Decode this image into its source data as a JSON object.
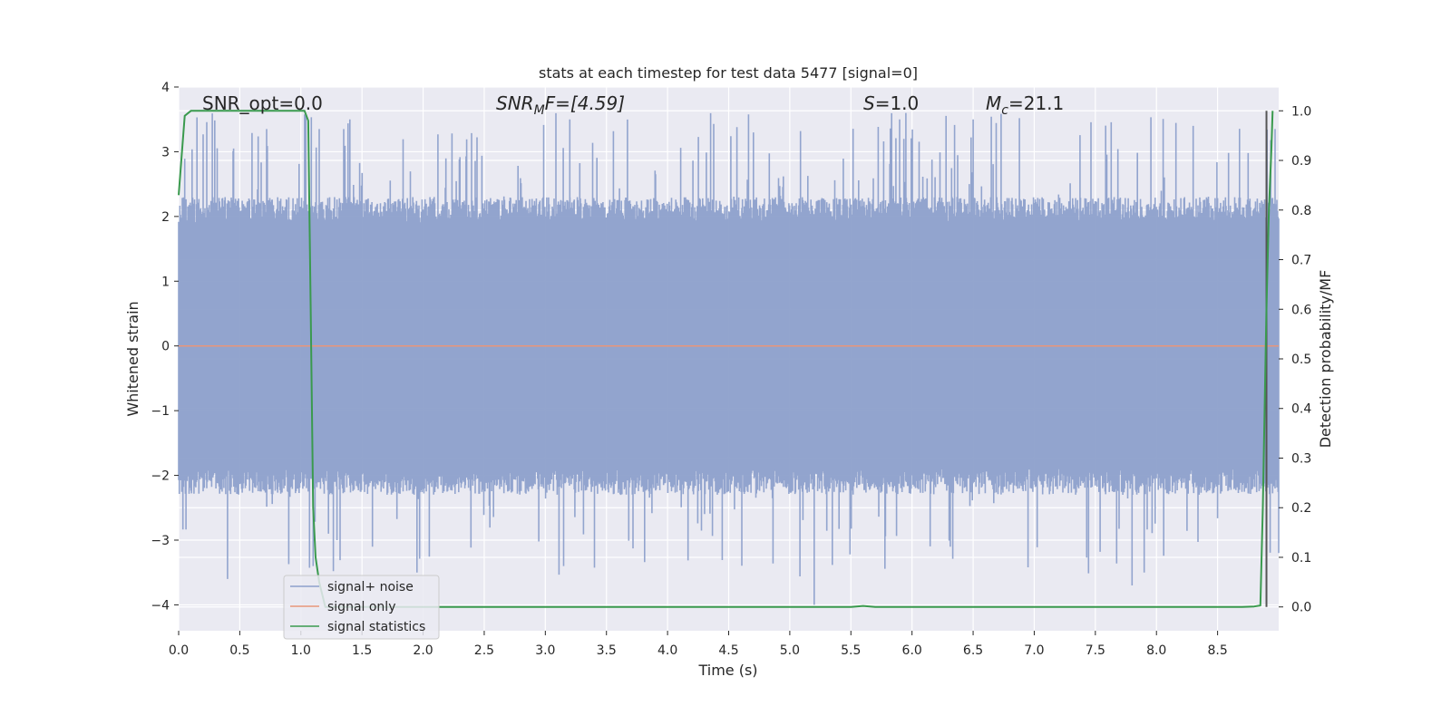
{
  "chart_data": {
    "type": "line",
    "title": "stats at each timestep for test data 5477 [signal=0]",
    "xlabel": "Time (s)",
    "ylabel": "Whitened strain",
    "y2label": "Detection probability/MF",
    "xlim": [
      0.0,
      9.0
    ],
    "ylim": [
      -4.4,
      4.0
    ],
    "y2lim": [
      -0.048,
      1.048
    ],
    "x_ticks": [
      0.0,
      0.5,
      1.0,
      1.5,
      2.0,
      2.5,
      3.0,
      3.5,
      4.0,
      4.5,
      5.0,
      5.5,
      6.0,
      6.5,
      7.0,
      7.5,
      8.0,
      8.5
    ],
    "x_tick_labels": [
      "0.0",
      "0.5",
      "1.0",
      "1.5",
      "2.0",
      "2.5",
      "3.0",
      "3.5",
      "4.0",
      "4.5",
      "5.0",
      "5.5",
      "6.0",
      "6.5",
      "7.0",
      "7.5",
      "8.0",
      "8.5"
    ],
    "y_ticks": [
      4,
      3,
      2,
      1,
      0,
      -1,
      -2,
      -3,
      -4
    ],
    "y_tick_labels": [
      "4",
      "3",
      "2",
      "1",
      "0",
      "−1",
      "−2",
      "−3",
      "−4"
    ],
    "y2_ticks": [
      1.0,
      0.9,
      0.8,
      0.7,
      0.6,
      0.5,
      0.4,
      0.3,
      0.2,
      0.1,
      0.0
    ],
    "y2_tick_labels": [
      "1.0",
      "0.9",
      "0.8",
      "0.7",
      "0.6",
      "0.5",
      "0.4",
      "0.3",
      "0.2",
      "0.1",
      "0.0"
    ],
    "grid": true,
    "legend_position": "lower-left",
    "annotations": {
      "snr_opt": "SNR_opt=0.0",
      "snr_mf_label": "SNR",
      "snr_mf_sub": "M",
      "snr_mf_rest": "F=[4.59]",
      "s_label": "S",
      "s_rest": "=1.0",
      "mc_label": "M",
      "mc_sub": "c",
      "mc_rest": "=21.1"
    },
    "series": [
      {
        "name": "signal+ noise",
        "color": "#8da0cb",
        "kind": "noise",
        "envelope": {
          "typical_upper": 2.0,
          "typical_lower": -2.0,
          "max_peak": 3.6,
          "min_peak": -4.0
        },
        "notable_peaks": [
          {
            "x": 0.45,
            "y": 3.05
          },
          {
            "x": 0.72,
            "y": 3.35
          },
          {
            "x": 1.15,
            "y": 3.35
          },
          {
            "x": 1.35,
            "y": 3.35
          },
          {
            "x": 3.2,
            "y": 3.5
          },
          {
            "x": 5.95,
            "y": 3.6
          },
          {
            "x": 6.5,
            "y": 3.5
          },
          {
            "x": 8.3,
            "y": 3.4
          },
          {
            "x": 8.97,
            "y": 3.35
          }
        ],
        "notable_troughs": [
          {
            "x": 0.4,
            "y": -3.6
          },
          {
            "x": 1.1,
            "y": -3.4
          },
          {
            "x": 1.95,
            "y": -3.5
          },
          {
            "x": 3.15,
            "y": -3.4
          },
          {
            "x": 5.2,
            "y": -4.0
          },
          {
            "x": 7.8,
            "y": -3.7
          },
          {
            "x": 7.9,
            "y": -3.5
          },
          {
            "x": 9.0,
            "y": -3.2
          }
        ]
      },
      {
        "name": "signal only",
        "color": "#e8967a",
        "x": [
          0.0,
          9.0
        ],
        "y": [
          0.0,
          0.0
        ]
      },
      {
        "name": "signal statistics",
        "color": "#3a9a4e",
        "axis": "right",
        "x": [
          0.0,
          0.05,
          0.1,
          0.15,
          0.3,
          0.5,
          0.7,
          0.9,
          1.0,
          1.03,
          1.06,
          1.08,
          1.1,
          1.12,
          1.15,
          1.2,
          1.5,
          2.0,
          3.0,
          4.0,
          5.0,
          5.5,
          5.6,
          5.7,
          6.0,
          7.0,
          8.0,
          8.7,
          8.8,
          8.85,
          8.87,
          8.9,
          8.92,
          8.94,
          8.95
        ],
        "y": [
          0.83,
          0.99,
          1.0,
          1.0,
          1.0,
          1.0,
          1.0,
          1.0,
          1.0,
          1.0,
          0.98,
          0.6,
          0.2,
          0.1,
          0.05,
          0.0,
          0.0,
          0.0,
          0.0,
          0.0,
          0.0,
          0.0,
          0.002,
          0.0,
          0.0,
          0.0,
          0.0,
          0.0,
          0.001,
          0.003,
          0.2,
          0.6,
          0.8,
          0.92,
          1.0
        ]
      }
    ],
    "vline": {
      "x": 8.9,
      "color": "#555555"
    }
  }
}
